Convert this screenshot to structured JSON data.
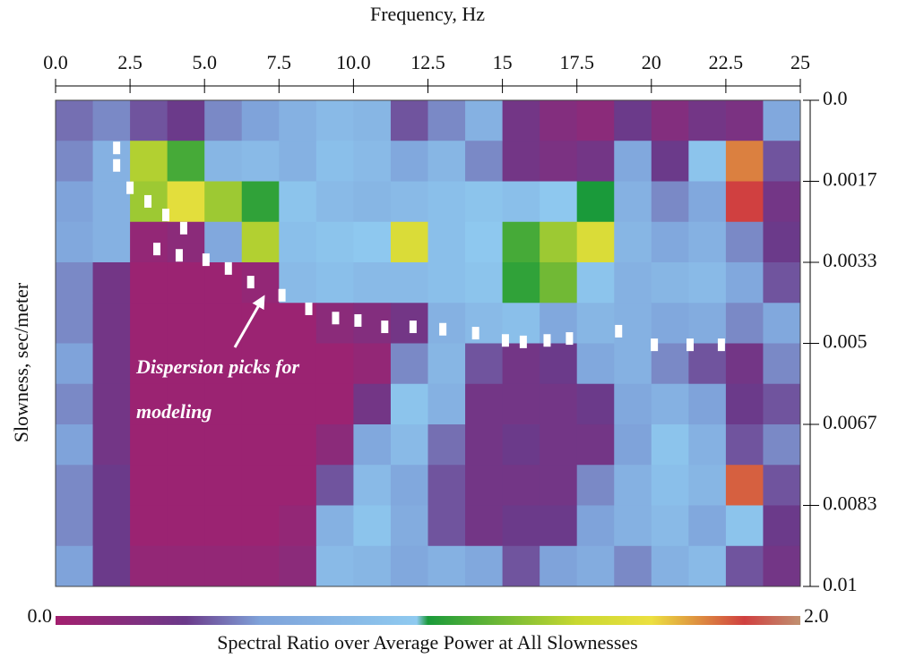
{
  "chart_data": {
    "type": "heatmap",
    "x_label": "Frequency, Hz",
    "y_label": "Slowness, sec/meter",
    "xlim": [
      0,
      25
    ],
    "xticks": [
      {
        "value": 0,
        "label": "0.0"
      },
      2.5,
      {
        "value": 5,
        "label": "5.0"
      },
      7.5,
      {
        "value": 10,
        "label": "10.0"
      },
      12.5,
      15,
      17.5,
      20,
      22.5,
      25
    ],
    "ylim": [
      0,
      0.01
    ],
    "y_inverted": true,
    "yticks": [
      {
        "value": 0,
        "label": "0.0"
      },
      {
        "value": 0.001667,
        "label": "0.0017"
      },
      {
        "value": 0.003333,
        "label": "0.0033"
      },
      0.005,
      {
        "value": 0.006667,
        "label": "0.0067"
      },
      {
        "value": 0.008333,
        "label": "0.0083"
      },
      0.01
    ],
    "xbins": [
      0,
      1.25,
      2.5,
      3.75,
      5,
      6.25,
      7.5,
      8.75,
      10,
      11.25,
      12.5,
      13.75,
      15,
      16.25,
      17.5,
      18.75,
      20,
      21.25,
      22.5,
      23.75,
      25
    ],
    "ybins": [
      0,
      0.000833,
      0.001667,
      0.0025,
      0.003333,
      0.004167,
      0.005,
      0.005833,
      0.006667,
      0.0075,
      0.008333,
      0.009167,
      0.01
    ],
    "z": [
      [
        0.45,
        0.5,
        0.4,
        0.35,
        0.5,
        0.55,
        0.7,
        0.8,
        0.75,
        0.4,
        0.5,
        0.7,
        0.3,
        0.2,
        0.15,
        0.35,
        0.2,
        0.3,
        0.25,
        0.6
      ],
      [
        0.5,
        0.7,
        1.35,
        1.1,
        0.75,
        0.8,
        0.7,
        0.85,
        0.8,
        0.6,
        0.75,
        0.5,
        0.3,
        0.25,
        0.3,
        0.6,
        0.35,
        0.9,
        1.75,
        0.4
      ],
      [
        0.55,
        0.7,
        1.3,
        1.55,
        1.3,
        1.05,
        0.9,
        0.8,
        0.75,
        0.8,
        0.85,
        0.9,
        0.85,
        0.95,
        1.0,
        0.7,
        0.5,
        0.6,
        1.85,
        0.3
      ],
      [
        0.6,
        0.7,
        0.1,
        0.15,
        0.6,
        1.35,
        0.85,
        0.9,
        0.95,
        1.5,
        0.85,
        0.95,
        1.1,
        1.3,
        1.5,
        0.75,
        0.6,
        0.7,
        0.5,
        0.35
      ],
      [
        0.5,
        0.3,
        0.05,
        0.05,
        0.05,
        0.1,
        0.8,
        0.85,
        0.8,
        0.8,
        0.85,
        0.9,
        1.05,
        1.2,
        0.9,
        0.7,
        0.75,
        0.8,
        0.6,
        0.4
      ],
      [
        0.5,
        0.3,
        0.05,
        0.05,
        0.05,
        0.05,
        0.05,
        0.15,
        0.2,
        0.3,
        0.7,
        0.8,
        0.85,
        0.6,
        0.75,
        0.7,
        0.6,
        0.65,
        0.5,
        0.6
      ],
      [
        0.55,
        0.3,
        0.05,
        0.05,
        0.05,
        0.05,
        0.05,
        0.05,
        0.1,
        0.5,
        0.75,
        0.4,
        0.3,
        0.35,
        0.6,
        0.7,
        0.5,
        0.4,
        0.3,
        0.5
      ],
      [
        0.5,
        0.3,
        0.05,
        0.05,
        0.05,
        0.05,
        0.05,
        0.05,
        0.3,
        0.9,
        0.7,
        0.3,
        0.3,
        0.3,
        0.35,
        0.6,
        0.7,
        0.55,
        0.35,
        0.4
      ],
      [
        0.55,
        0.3,
        0.05,
        0.05,
        0.05,
        0.05,
        0.05,
        0.15,
        0.6,
        0.8,
        0.45,
        0.3,
        0.35,
        0.3,
        0.3,
        0.55,
        0.9,
        0.7,
        0.4,
        0.5
      ],
      [
        0.5,
        0.35,
        0.05,
        0.05,
        0.05,
        0.05,
        0.05,
        0.4,
        0.8,
        0.6,
        0.4,
        0.3,
        0.3,
        0.3,
        0.5,
        0.7,
        0.85,
        0.75,
        1.8,
        0.4
      ],
      [
        0.5,
        0.35,
        0.05,
        0.05,
        0.05,
        0.05,
        0.1,
        0.7,
        0.9,
        0.65,
        0.4,
        0.3,
        0.35,
        0.35,
        0.55,
        0.7,
        0.8,
        0.6,
        0.9,
        0.35
      ],
      [
        0.55,
        0.35,
        0.1,
        0.1,
        0.1,
        0.1,
        0.15,
        0.8,
        0.75,
        0.6,
        0.7,
        0.6,
        0.4,
        0.55,
        0.65,
        0.5,
        0.7,
        0.8,
        0.4,
        0.3
      ]
    ],
    "zlim": [
      0,
      2
    ],
    "colorscale": [
      [
        0,
        "#a31f6e"
      ],
      [
        0.35,
        "#6b3a8a"
      ],
      [
        0.55,
        "#7fa3da"
      ],
      [
        0.97,
        "#8fcaf0"
      ],
      [
        1.0,
        "#1a9a3a"
      ],
      [
        1.4,
        "#c8d830"
      ],
      [
        1.6,
        "#ece040"
      ],
      [
        1.85,
        "#d04040"
      ],
      [
        2.0,
        "#c09070"
      ]
    ],
    "colorbar": {
      "label": "Spectral Ratio over Average Power at All Slownesses",
      "ticks": [
        {
          "value": 0,
          "label": "0.0"
        },
        {
          "value": 2,
          "label": "2.0"
        }
      ]
    },
    "picks": {
      "color": "#ffffff",
      "x": [
        2.05,
        2.05,
        2.5,
        3.1,
        3.7,
        4.3,
        3.4,
        4.15,
        5.05,
        5.8,
        6.55,
        7.6,
        8.5,
        9.4,
        10.15,
        11.05,
        12.0,
        13.0,
        14.1,
        15.1,
        15.7,
        16.5,
        17.25,
        18.9,
        20.1,
        21.3,
        22.35
      ],
      "y": [
        0.00098,
        0.00134,
        0.0018,
        0.00208,
        0.00236,
        0.00263,
        0.00306,
        0.00319,
        0.00328,
        0.00346,
        0.00374,
        0.00401,
        0.00429,
        0.00448,
        0.00453,
        0.00466,
        0.00466,
        0.00471,
        0.00479,
        0.00494,
        0.00497,
        0.00494,
        0.0049,
        0.00475,
        0.00503,
        0.00503,
        0.00503
      ]
    },
    "annotation": {
      "lines": [
        "Dispersion picks for",
        "modeling"
      ]
    }
  }
}
